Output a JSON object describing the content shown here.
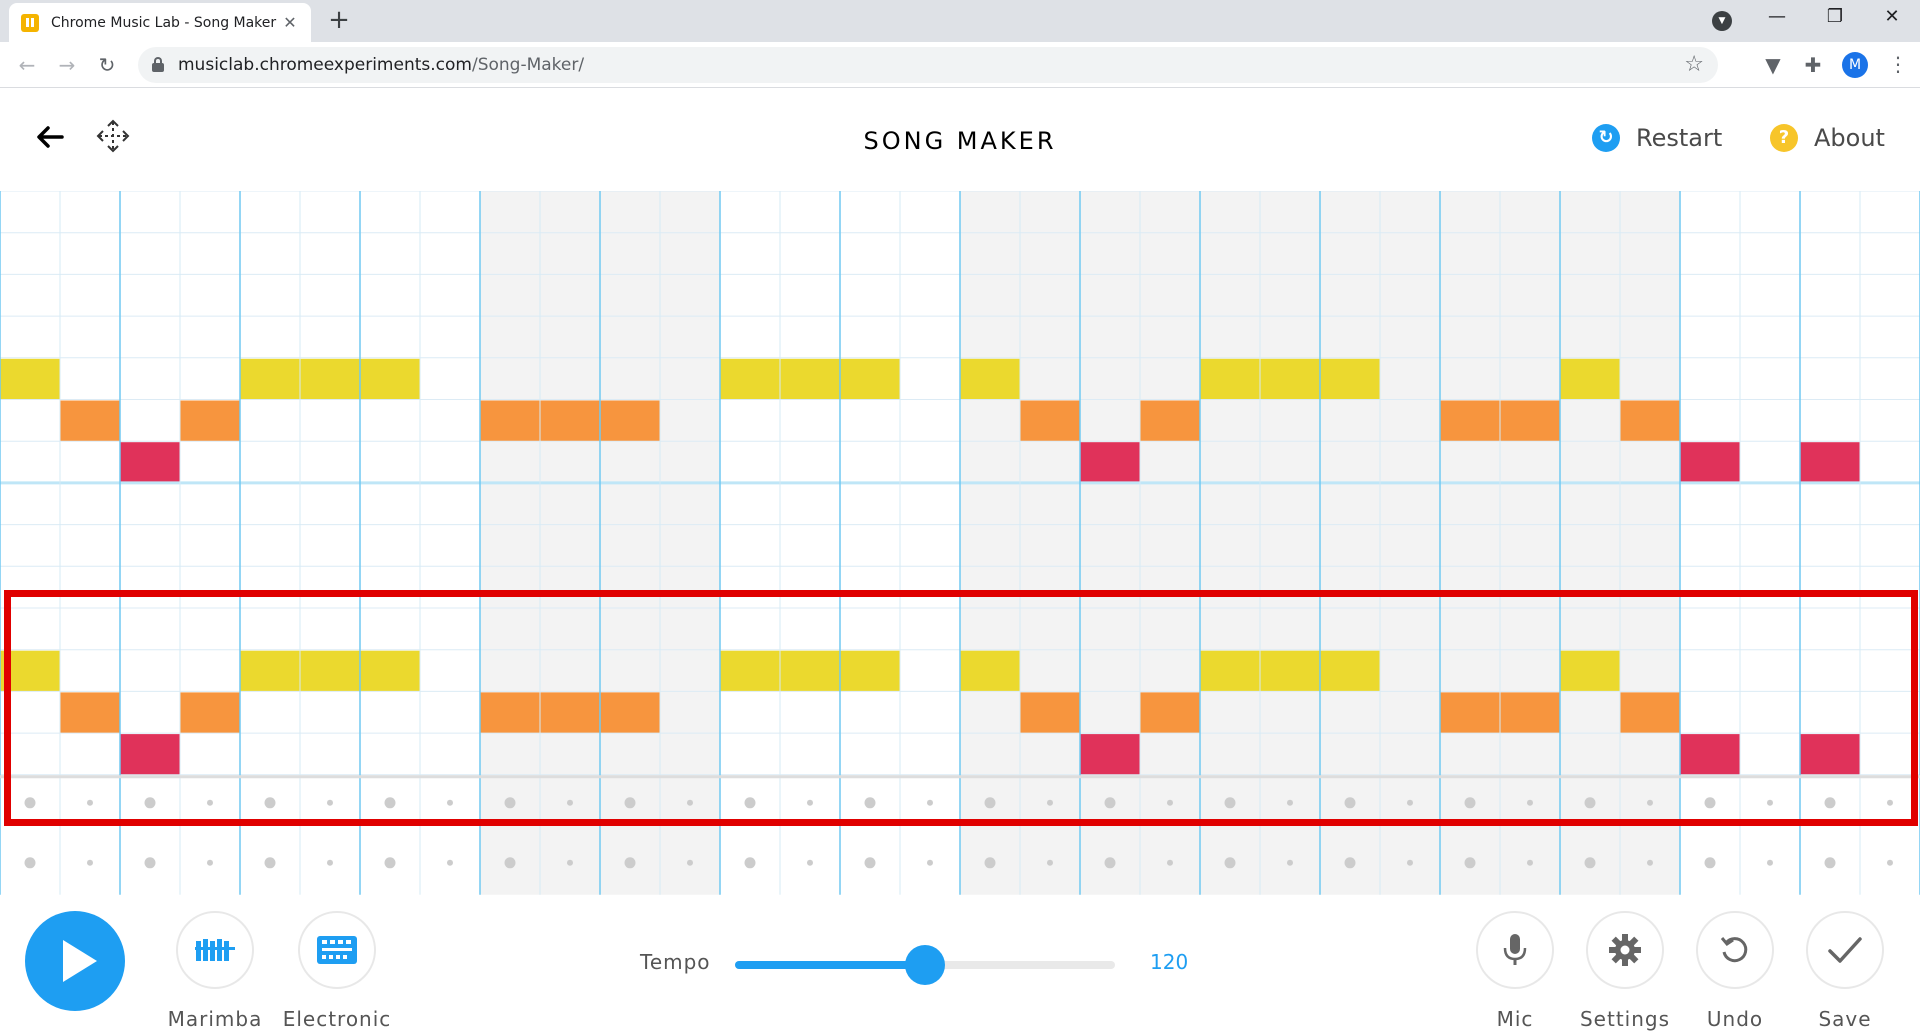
{
  "browser": {
    "tab_title": "Chrome Music Lab - Song Maker",
    "url_domain": "musiclab.chromeexperiments.com",
    "url_path": "/Song-Maker/",
    "profile_initial": "M"
  },
  "header": {
    "title": "SONG MAKER",
    "restart_label": "Restart",
    "about_label": "About"
  },
  "grid": {
    "columns": 32,
    "pitch_rows": 14,
    "rhythm_rows": 2,
    "shaded_column_ranges": [
      [
        8,
        11
      ],
      [
        16,
        23
      ],
      [
        24,
        27
      ]
    ],
    "notes": [
      {
        "row": 4,
        "col": 0,
        "color": "yellow"
      },
      {
        "row": 5,
        "col": 1,
        "color": "orange"
      },
      {
        "row": 6,
        "col": 2,
        "color": "red"
      },
      {
        "row": 5,
        "col": 3,
        "color": "orange"
      },
      {
        "row": 4,
        "col": 4,
        "color": "yellow"
      },
      {
        "row": 4,
        "col": 5,
        "color": "yellow"
      },
      {
        "row": 4,
        "col": 6,
        "color": "yellow"
      },
      {
        "row": 5,
        "col": 8,
        "color": "orange"
      },
      {
        "row": 5,
        "col": 9,
        "color": "orange"
      },
      {
        "row": 5,
        "col": 10,
        "color": "orange"
      },
      {
        "row": 4,
        "col": 12,
        "color": "yellow"
      },
      {
        "row": 4,
        "col": 13,
        "color": "yellow"
      },
      {
        "row": 4,
        "col": 14,
        "color": "yellow"
      },
      {
        "row": 4,
        "col": 16,
        "color": "yellow"
      },
      {
        "row": 5,
        "col": 17,
        "color": "orange"
      },
      {
        "row": 6,
        "col": 18,
        "color": "red"
      },
      {
        "row": 5,
        "col": 19,
        "color": "orange"
      },
      {
        "row": 4,
        "col": 20,
        "color": "yellow"
      },
      {
        "row": 4,
        "col": 21,
        "color": "yellow"
      },
      {
        "row": 4,
        "col": 22,
        "color": "yellow"
      },
      {
        "row": 5,
        "col": 24,
        "color": "orange"
      },
      {
        "row": 5,
        "col": 25,
        "color": "orange"
      },
      {
        "row": 4,
        "col": 26,
        "color": "yellow"
      },
      {
        "row": 5,
        "col": 27,
        "color": "orange"
      },
      {
        "row": 6,
        "col": 28,
        "color": "red"
      },
      {
        "row": 6,
        "col": 30,
        "color": "red"
      },
      {
        "row": 11,
        "col": 0,
        "color": "yellow"
      },
      {
        "row": 12,
        "col": 1,
        "color": "orange"
      },
      {
        "row": 13,
        "col": 2,
        "color": "red"
      },
      {
        "row": 12,
        "col": 3,
        "color": "orange"
      },
      {
        "row": 11,
        "col": 4,
        "color": "yellow"
      },
      {
        "row": 11,
        "col": 5,
        "color": "yellow"
      },
      {
        "row": 11,
        "col": 6,
        "color": "yellow"
      },
      {
        "row": 12,
        "col": 8,
        "color": "orange"
      },
      {
        "row": 12,
        "col": 9,
        "color": "orange"
      },
      {
        "row": 12,
        "col": 10,
        "color": "orange"
      },
      {
        "row": 11,
        "col": 12,
        "color": "yellow"
      },
      {
        "row": 11,
        "col": 13,
        "color": "yellow"
      },
      {
        "row": 11,
        "col": 14,
        "color": "yellow"
      },
      {
        "row": 11,
        "col": 16,
        "color": "yellow"
      },
      {
        "row": 12,
        "col": 17,
        "color": "orange"
      },
      {
        "row": 13,
        "col": 18,
        "color": "red"
      },
      {
        "row": 12,
        "col": 19,
        "color": "orange"
      },
      {
        "row": 11,
        "col": 20,
        "color": "yellow"
      },
      {
        "row": 11,
        "col": 21,
        "color": "yellow"
      },
      {
        "row": 11,
        "col": 22,
        "color": "yellow"
      },
      {
        "row": 12,
        "col": 24,
        "color": "orange"
      },
      {
        "row": 12,
        "col": 25,
        "color": "orange"
      },
      {
        "row": 11,
        "col": 26,
        "color": "yellow"
      },
      {
        "row": 12,
        "col": 27,
        "color": "orange"
      },
      {
        "row": 13,
        "col": 28,
        "color": "red"
      },
      {
        "row": 13,
        "col": 30,
        "color": "red"
      }
    ]
  },
  "colors": {
    "yellow": "#ebd92e",
    "orange": "#f7953e",
    "red": "#e0325a",
    "accent": "#1e9ef2",
    "restart_icon": "#1e9ef2",
    "about_icon": "#f7c52a",
    "highlight": "#e00000"
  },
  "controls": {
    "play_icon": "play-icon",
    "instrument_label": "Marimba",
    "percussion_label": "Electronic",
    "tempo_label": "Tempo",
    "tempo_value": "120",
    "tempo_fraction": 0.5,
    "mic_label": "Mic",
    "settings_label": "Settings",
    "undo_label": "Undo",
    "save_label": "Save"
  }
}
